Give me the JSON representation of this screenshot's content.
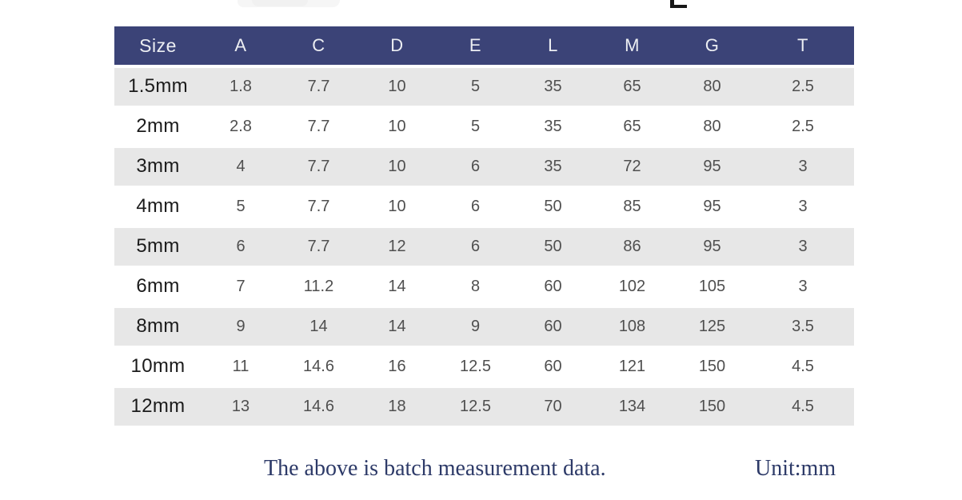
{
  "chart_data": {
    "type": "table",
    "title": "Batch measurement data",
    "unit": "mm",
    "columns": [
      "Size",
      "A",
      "C",
      "D",
      "E",
      "L",
      "M",
      "G",
      "T"
    ],
    "rows": [
      [
        "1.5mm",
        "1.8",
        "7.7",
        "10",
        "5",
        "35",
        "65",
        "80",
        "2.5"
      ],
      [
        "2mm",
        "2.8",
        "7.7",
        "10",
        "5",
        "35",
        "65",
        "80",
        "2.5"
      ],
      [
        "3mm",
        "4",
        "7.7",
        "10",
        "6",
        "35",
        "72",
        "95",
        "3"
      ],
      [
        "4mm",
        "5",
        "7.7",
        "10",
        "6",
        "50",
        "85",
        "95",
        "3"
      ],
      [
        "5mm",
        "6",
        "7.7",
        "12",
        "6",
        "50",
        "86",
        "95",
        "3"
      ],
      [
        "6mm",
        "7",
        "11.2",
        "14",
        "8",
        "60",
        "102",
        "105",
        "3"
      ],
      [
        "8mm",
        "9",
        "14",
        "14",
        "9",
        "60",
        "108",
        "125",
        "3.5"
      ],
      [
        "10mm",
        "11",
        "14.6",
        "16",
        "12.5",
        "60",
        "121",
        "150",
        "4.5"
      ],
      [
        "12mm",
        "13",
        "14.6",
        "18",
        "12.5",
        "70",
        "134",
        "150",
        "4.5"
      ]
    ]
  },
  "footer": {
    "note": "The above is batch measurement data.",
    "unit_label": "Unit:mm"
  },
  "colors": {
    "header_bg": "#3b4377",
    "header_text": "#eceef2",
    "row_alt_bg": "#e7e7e7",
    "row_bg": "#ffffff",
    "size_text": "#1b1b1b",
    "data_text": "#4f4f4f",
    "footer_text": "#2d3a68"
  },
  "artifacts": {
    "top_letter_fragment": "L",
    "top_image_remnant": "faint cropped picture edge"
  }
}
